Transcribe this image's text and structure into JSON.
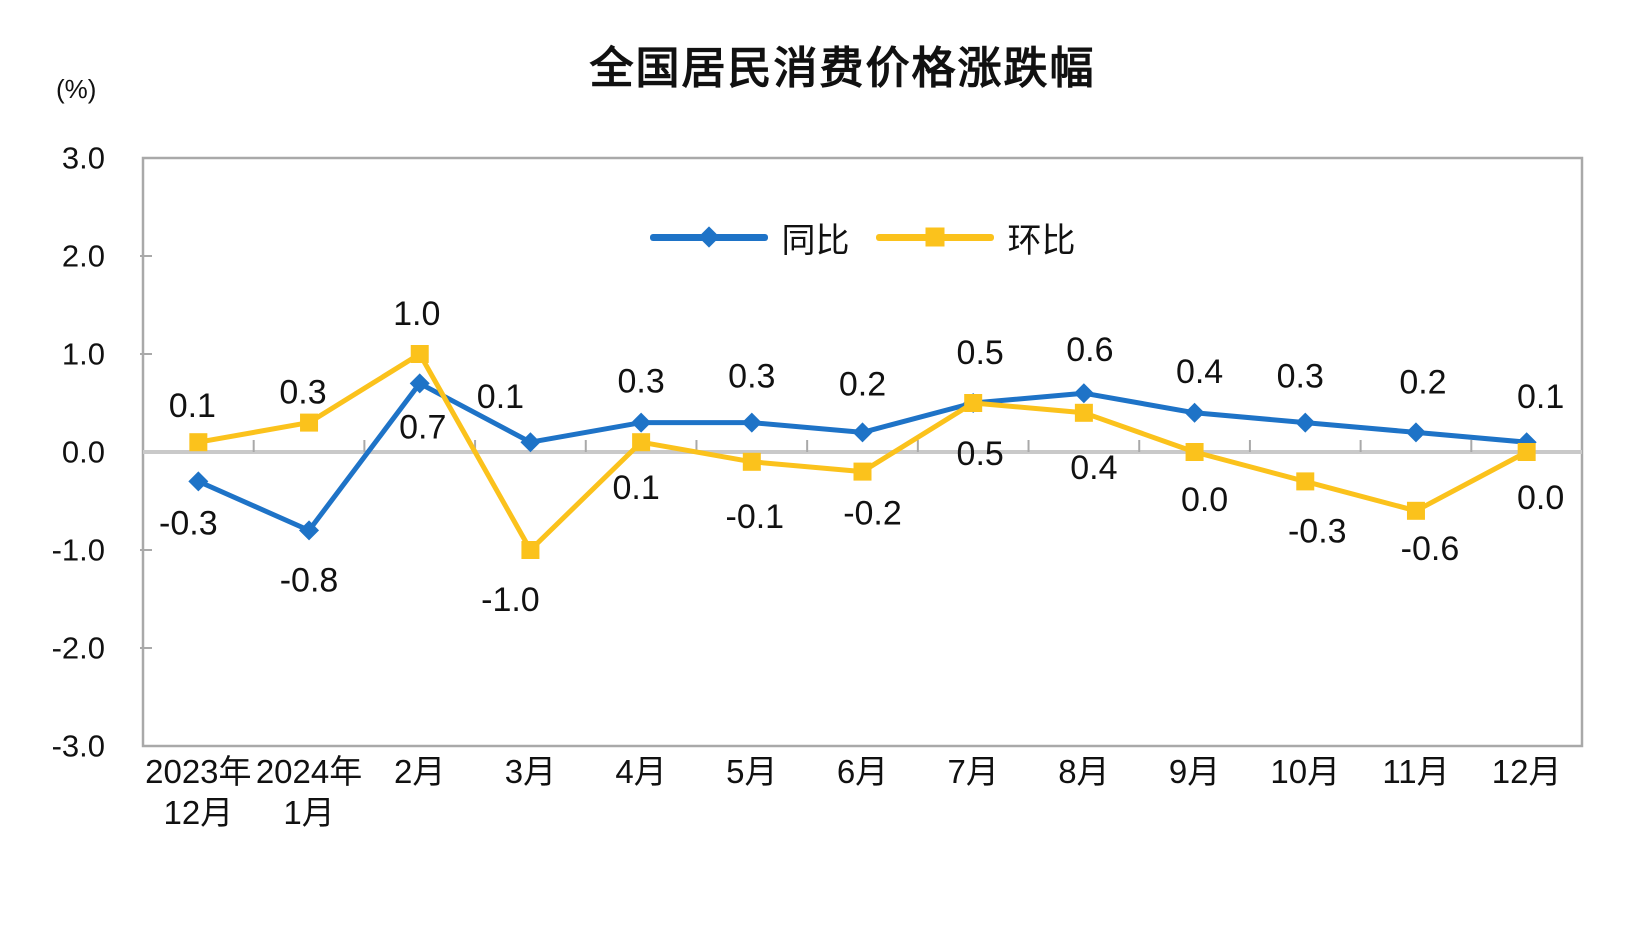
{
  "chart_data": {
    "type": "line",
    "title": "全国居民消费价格涨跌幅",
    "unit_label": "(%)",
    "xlabel": "",
    "ylabel": "(%)",
    "ylim": [
      -3.0,
      3.0
    ],
    "grid": "zero-line-only",
    "legend_position": "top-center-inside",
    "categories": [
      [
        "2023年",
        "12月"
      ],
      [
        "2024年",
        "1月"
      ],
      [
        "2月"
      ],
      [
        "3月"
      ],
      [
        "4月"
      ],
      [
        "5月"
      ],
      [
        "6月"
      ],
      [
        "7月"
      ],
      [
        "8月"
      ],
      [
        "9月"
      ],
      [
        "10月"
      ],
      [
        "11月"
      ],
      [
        "12月"
      ]
    ],
    "y_ticks": [
      {
        "label": "3.0",
        "value": 3.0
      },
      {
        "label": "2.0",
        "value": 2.0
      },
      {
        "label": "1.0",
        "value": 1.0
      },
      {
        "label": "0.0",
        "value": 0.0
      },
      {
        "label": "-1.0",
        "value": -1.0
      },
      {
        "label": "-2.0",
        "value": -2.0
      },
      {
        "label": "-3.0",
        "value": -3.0
      }
    ],
    "series": [
      {
        "name": "同比",
        "marker": "diamond",
        "color": "#1E73C7",
        "values": [
          -0.3,
          -0.8,
          0.7,
          0.1,
          0.3,
          0.3,
          0.2,
          0.5,
          0.6,
          0.4,
          0.3,
          0.2,
          0.1
        ],
        "labels": [
          "-0.3",
          "-0.8",
          "0.7",
          "0.1",
          "0.3",
          "0.3",
          "0.2",
          "0.5",
          "0.6",
          "0.4",
          "0.3",
          "0.2",
          "0.1"
        ],
        "label_offsets": [
          [
            -10,
            42
          ],
          [
            0,
            50
          ],
          [
            3,
            44
          ],
          [
            -30,
            -45
          ],
          [
            0,
            -41
          ],
          [
            0,
            -46
          ],
          [
            0,
            -48
          ],
          [
            7,
            -50
          ],
          [
            6,
            -43
          ],
          [
            5,
            -41
          ],
          [
            -5,
            -46
          ],
          [
            7,
            -50
          ],
          [
            14,
            -45
          ]
        ]
      },
      {
        "name": "环比",
        "marker": "square",
        "color": "#FBC21C",
        "values": [
          0.1,
          0.3,
          1.0,
          -1.0,
          0.1,
          -0.1,
          -0.2,
          0.5,
          0.4,
          0.0,
          -0.3,
          -0.6,
          0.0
        ],
        "labels": [
          "0.1",
          "0.3",
          "1.0",
          "-1.0",
          "0.1",
          "-0.1",
          "-0.2",
          "0.5",
          "0.4",
          "0.0",
          "-0.3",
          "-0.6",
          "0.0"
        ],
        "label_offsets": [
          [
            -6,
            -36
          ],
          [
            -6,
            -30
          ],
          [
            -3,
            -40
          ],
          [
            -20,
            50
          ],
          [
            -5,
            46
          ],
          [
            3,
            55
          ],
          [
            10,
            42
          ],
          [
            7,
            51
          ],
          [
            10,
            55
          ],
          [
            10,
            48
          ],
          [
            12,
            50
          ],
          [
            14,
            38
          ],
          [
            14,
            46
          ]
        ]
      }
    ],
    "colors": {
      "frame": "#A9A9A9",
      "zero_line": "#C9C9C9",
      "tick": "#A9A9A9",
      "text": "#111111"
    }
  }
}
